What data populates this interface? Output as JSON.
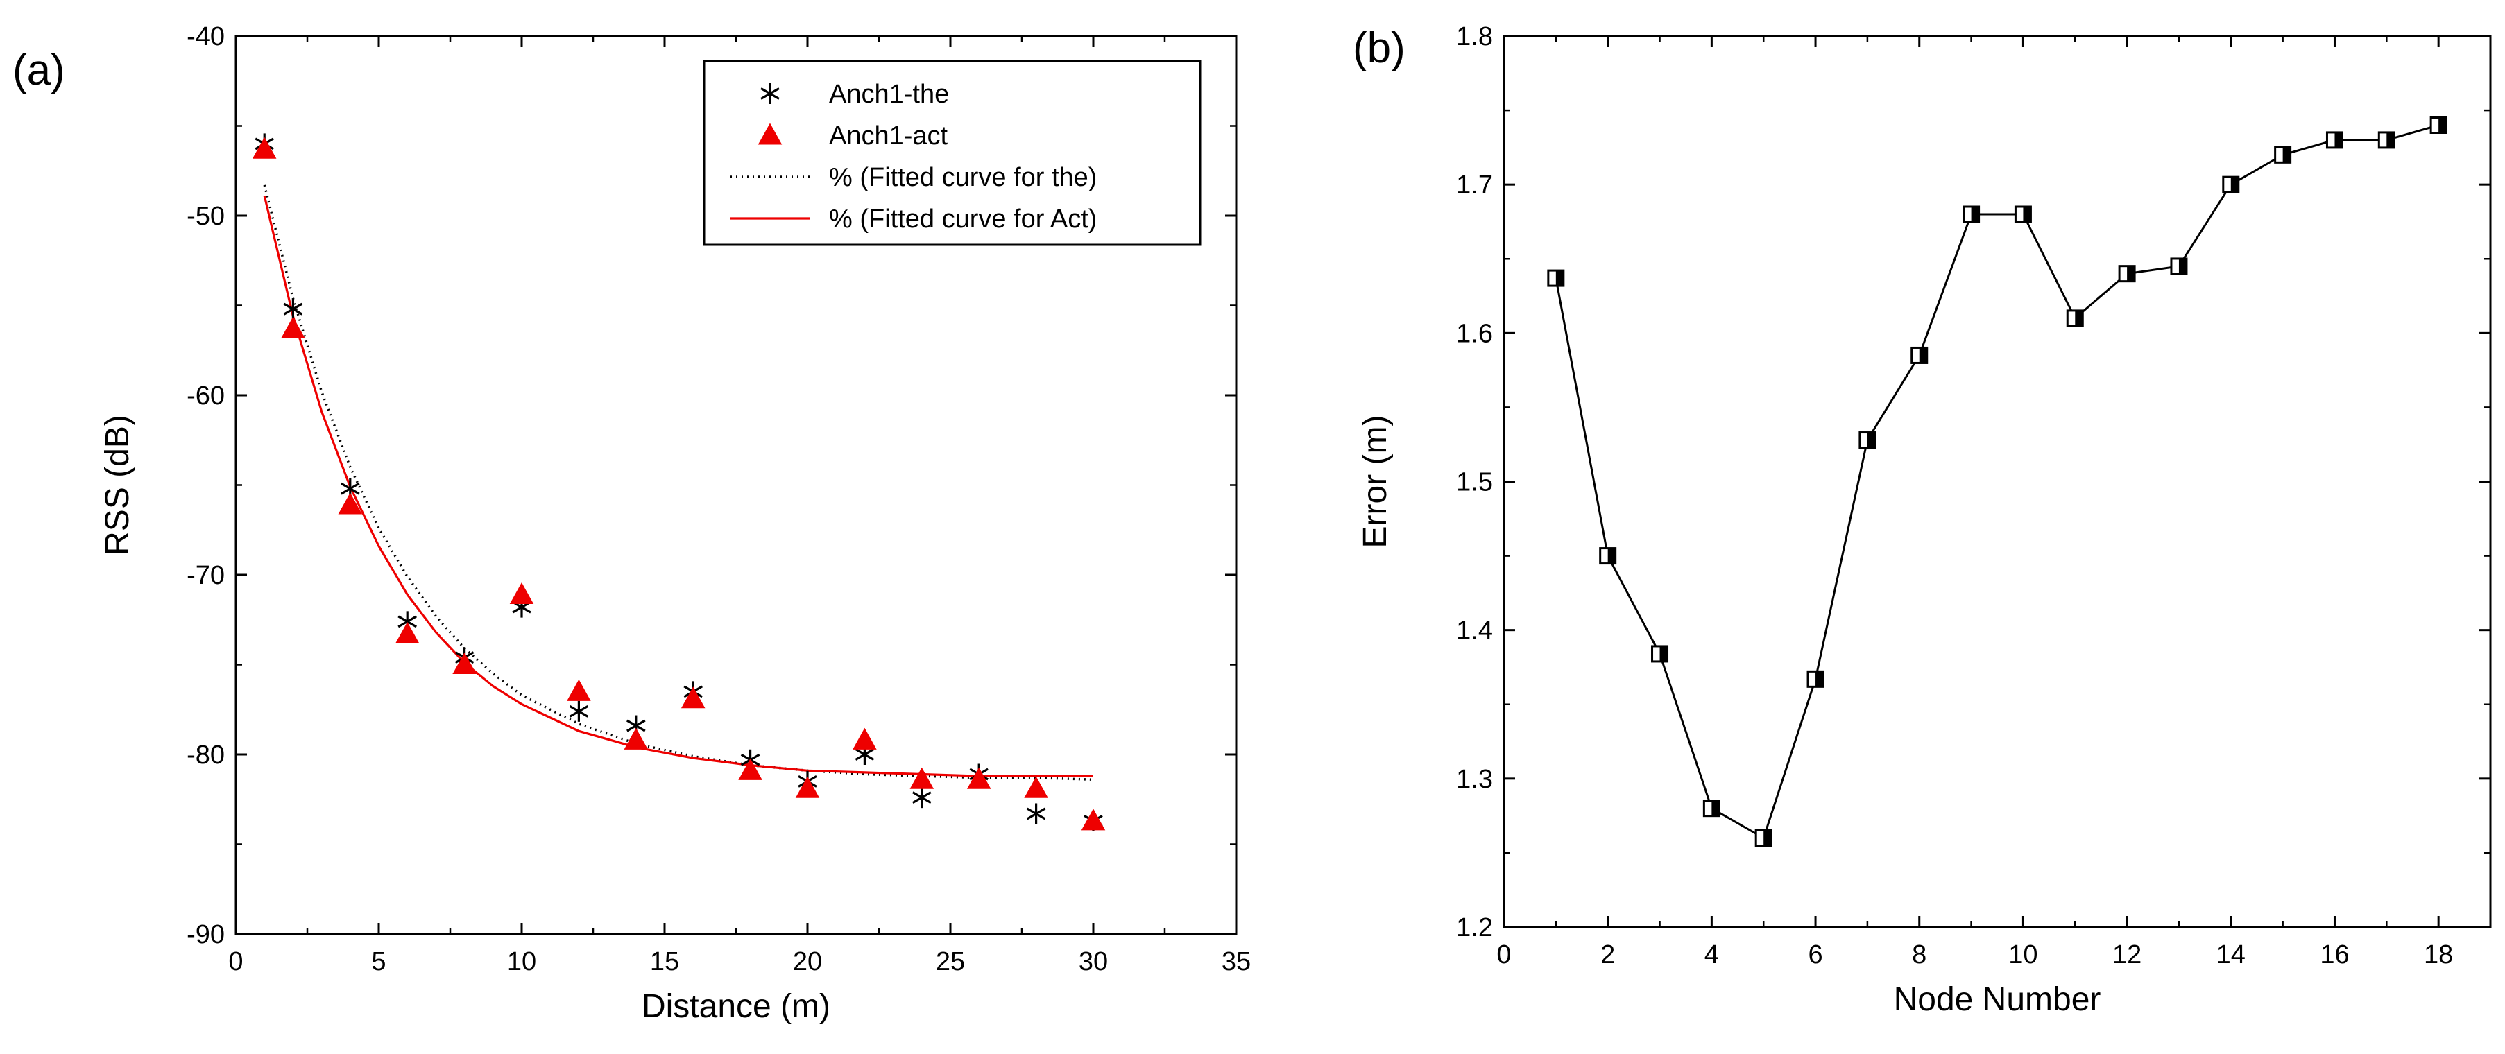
{
  "chart_data": [
    {
      "type": "scatter",
      "panel_label": "(a)",
      "xlabel": "Distance (m)",
      "ylabel": "RSS (dB)",
      "xlim": [
        0,
        35
      ],
      "ylim": [
        -90,
        -40
      ],
      "xticks": [
        0,
        5,
        10,
        15,
        20,
        25,
        30,
        35
      ],
      "yticks": [
        -90,
        -80,
        -70,
        -60,
        -50,
        -40
      ],
      "legend_position": "top-right",
      "series": [
        {
          "name": "Anch1-the",
          "kind": "scatter",
          "marker": "asterisk",
          "color": "#000000",
          "x": [
            1,
            2,
            4,
            6,
            8,
            10,
            12,
            14,
            16,
            18,
            20,
            22,
            24,
            26,
            28,
            30
          ],
          "y": [
            -46,
            -55.2,
            -65.2,
            -72.6,
            -74.6,
            -71.8,
            -77.6,
            -78.4,
            -76.5,
            -80.3,
            -81.5,
            -80.0,
            -82.4,
            -81.1,
            -83.3,
            -83.7
          ]
        },
        {
          "name": "Anch1-act",
          "kind": "scatter",
          "marker": "triangle",
          "color": "#ee0000",
          "x": [
            1,
            2,
            4,
            6,
            8,
            10,
            12,
            14,
            16,
            18,
            20,
            22,
            24,
            26,
            28,
            30
          ],
          "y": [
            -46.3,
            -56.3,
            -66.1,
            -73.3,
            -75.0,
            -71.1,
            -76.5,
            -79.2,
            -76.9,
            -80.9,
            -81.9,
            -79.2,
            -81.4,
            -81.4,
            -81.9,
            -83.7
          ]
        },
        {
          "name": "% (Fitted curve for the)",
          "kind": "line",
          "style": "dotted",
          "color": "#000000",
          "x": [
            1,
            2,
            3,
            4,
            5,
            6,
            7,
            8,
            9,
            10,
            12,
            14,
            16,
            18,
            20,
            22,
            24,
            26,
            28,
            30
          ],
          "y": [
            -48.3,
            -54.6,
            -59.8,
            -64.0,
            -67.4,
            -70.1,
            -72.3,
            -74.1,
            -75.5,
            -76.7,
            -78.3,
            -79.4,
            -80.1,
            -80.6,
            -80.9,
            -81.1,
            -81.2,
            -81.3,
            -81.3,
            -81.4
          ]
        },
        {
          "name": "% (Fitted curve for Act)",
          "kind": "line",
          "style": "solid",
          "color": "#ee0000",
          "x": [
            1,
            2,
            3,
            4,
            5,
            6,
            7,
            8,
            9,
            10,
            12,
            14,
            16,
            18,
            20,
            22,
            24,
            26,
            28,
            30
          ],
          "y": [
            -48.9,
            -55.6,
            -60.9,
            -65.1,
            -68.4,
            -71.1,
            -73.2,
            -74.9,
            -76.2,
            -77.2,
            -78.7,
            -79.6,
            -80.2,
            -80.6,
            -80.9,
            -81.0,
            -81.1,
            -81.2,
            -81.2,
            -81.2
          ]
        }
      ]
    },
    {
      "type": "line",
      "panel_label": "(b)",
      "xlabel": "Node Number",
      "ylabel": "Error (m)",
      "xlim": [
        0,
        19
      ],
      "ylim": [
        1.2,
        1.8
      ],
      "xticks": [
        0,
        2,
        4,
        6,
        8,
        10,
        12,
        14,
        16,
        18
      ],
      "yticks": [
        1.2,
        1.3,
        1.4,
        1.5,
        1.6,
        1.7,
        1.8
      ],
      "series": [
        {
          "name": "Error",
          "marker": "half-filled-square",
          "color": "#000000",
          "x": [
            1,
            2,
            3,
            4,
            5,
            6,
            7,
            8,
            9,
            10,
            11,
            12,
            13,
            14,
            15,
            16,
            17,
            18
          ],
          "y": [
            1.637,
            1.45,
            1.384,
            1.28,
            1.26,
            1.367,
            1.528,
            1.585,
            1.68,
            1.68,
            1.61,
            1.64,
            1.645,
            1.7,
            1.72,
            1.73,
            1.73,
            1.74
          ]
        }
      ]
    }
  ]
}
